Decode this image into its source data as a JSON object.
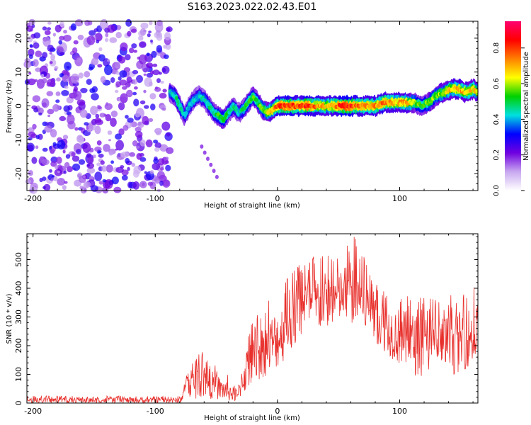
{
  "title": "S163.2023.022.02.43.E01",
  "chart_data": [
    {
      "type": "heatmap",
      "xlabel": "Height of straight line (km)",
      "ylabel": "Frequency (Hz)",
      "xlim": [
        -205,
        164
      ],
      "ylim": [
        -25,
        25
      ],
      "xticks": [
        -200,
        -100,
        0,
        100
      ],
      "yticks": [
        20,
        10,
        0,
        -10,
        -20
      ],
      "colorbar": {
        "label": "Normalized spectral amplitude",
        "range": [
          0.0,
          0.95
        ],
        "ticks": [
          0.0,
          0.2,
          0.4,
          0.6,
          0.8
        ],
        "colors": [
          "#ffffff",
          "#c8a8f0",
          "#7000e0",
          "#0000ff",
          "#00e0e0",
          "#00d000",
          "#ffff00",
          "#ff8000",
          "#ff0000",
          "#ff0070"
        ]
      },
      "noise_region": {
        "x_from": -205,
        "x_to": -88,
        "level": 0.25
      },
      "signal_track": [
        {
          "x": -88,
          "y": 4,
          "a": 0.45
        },
        {
          "x": -84,
          "y": 3,
          "a": 0.5
        },
        {
          "x": -80,
          "y": 0,
          "a": 0.5
        },
        {
          "x": -76,
          "y": -3,
          "a": 0.45
        },
        {
          "x": -72,
          "y": 0,
          "a": 0.45
        },
        {
          "x": -68,
          "y": 2,
          "a": 0.45
        },
        {
          "x": -64,
          "y": 3,
          "a": 0.45
        },
        {
          "x": -60,
          "y": 2,
          "a": 0.45
        },
        {
          "x": -56,
          "y": 0,
          "a": 0.5
        },
        {
          "x": -52,
          "y": -2,
          "a": 0.5
        },
        {
          "x": -48,
          "y": -3,
          "a": 0.55
        },
        {
          "x": -44,
          "y": -4,
          "a": 0.55
        },
        {
          "x": -40,
          "y": -2,
          "a": 0.5
        },
        {
          "x": -36,
          "y": 0,
          "a": 0.5
        },
        {
          "x": -32,
          "y": -2,
          "a": 0.45
        },
        {
          "x": -28,
          "y": -1,
          "a": 0.5
        },
        {
          "x": -24,
          "y": 1,
          "a": 0.55
        },
        {
          "x": -20,
          "y": 3,
          "a": 0.55
        },
        {
          "x": -16,
          "y": 1,
          "a": 0.55
        },
        {
          "x": -12,
          "y": -1,
          "a": 0.6
        },
        {
          "x": -8,
          "y": -2,
          "a": 0.65
        },
        {
          "x": -4,
          "y": -1,
          "a": 0.7
        },
        {
          "x": 0,
          "y": 0,
          "a": 0.8
        },
        {
          "x": 8,
          "y": 0,
          "a": 0.85
        },
        {
          "x": 16,
          "y": 0,
          "a": 0.8
        },
        {
          "x": 24,
          "y": 0,
          "a": 0.85
        },
        {
          "x": 32,
          "y": 0,
          "a": 0.75
        },
        {
          "x": 40,
          "y": 0,
          "a": 0.7
        },
        {
          "x": 48,
          "y": 0,
          "a": 0.8
        },
        {
          "x": 56,
          "y": 0,
          "a": 0.9
        },
        {
          "x": 64,
          "y": 0,
          "a": 0.8
        },
        {
          "x": 72,
          "y": 0,
          "a": 0.75
        },
        {
          "x": 80,
          "y": 0,
          "a": 0.75
        },
        {
          "x": 88,
          "y": 1,
          "a": 0.8
        },
        {
          "x": 96,
          "y": 1,
          "a": 0.7
        },
        {
          "x": 104,
          "y": 1,
          "a": 0.75
        },
        {
          "x": 112,
          "y": 1,
          "a": 0.6
        },
        {
          "x": 118,
          "y": 0,
          "a": 0.55
        },
        {
          "x": 124,
          "y": 1,
          "a": 0.6
        },
        {
          "x": 130,
          "y": 3,
          "a": 0.6
        },
        {
          "x": 136,
          "y": 4,
          "a": 0.65
        },
        {
          "x": 142,
          "y": 5,
          "a": 0.7
        },
        {
          "x": 148,
          "y": 5,
          "a": 0.75
        },
        {
          "x": 154,
          "y": 4,
          "a": 0.7
        },
        {
          "x": 160,
          "y": 5,
          "a": 0.7
        },
        {
          "x": 164,
          "y": 4,
          "a": 0.65
        }
      ]
    },
    {
      "type": "line",
      "xlabel": "Height of straight line (km)",
      "ylabel": "SNR (10 * v/v)",
      "xlim": [
        -205,
        164
      ],
      "ylim": [
        0,
        590
      ],
      "xticks": [
        -200,
        -100,
        0,
        100
      ],
      "yticks": [
        0,
        100,
        200,
        300,
        400,
        500
      ],
      "color": "#e8302c",
      "series": [
        {
          "envelope": [
            {
              "x": -205,
              "lo": 0,
              "hi": 25
            },
            {
              "x": -100,
              "lo": 0,
              "hi": 25
            },
            {
              "x": -80,
              "lo": 0,
              "hi": 25
            },
            {
              "x": -72,
              "lo": 10,
              "hi": 130
            },
            {
              "x": -62,
              "lo": 20,
              "hi": 190
            },
            {
              "x": -55,
              "lo": 15,
              "hi": 150
            },
            {
              "x": -45,
              "lo": 10,
              "hi": 110
            },
            {
              "x": -38,
              "lo": 5,
              "hi": 90
            },
            {
              "x": -33,
              "lo": 5,
              "hi": 40
            },
            {
              "x": -30,
              "lo": 20,
              "hi": 150
            },
            {
              "x": -25,
              "lo": 40,
              "hi": 250
            },
            {
              "x": -15,
              "lo": 80,
              "hi": 320
            },
            {
              "x": 0,
              "lo": 120,
              "hi": 400
            },
            {
              "x": 10,
              "lo": 170,
              "hi": 450
            },
            {
              "x": 20,
              "lo": 220,
              "hi": 500
            },
            {
              "x": 35,
              "lo": 250,
              "hi": 520
            },
            {
              "x": 50,
              "lo": 280,
              "hi": 520
            },
            {
              "x": 62,
              "lo": 270,
              "hi": 590
            },
            {
              "x": 75,
              "lo": 240,
              "hi": 470
            },
            {
              "x": 85,
              "lo": 190,
              "hi": 400
            },
            {
              "x": 100,
              "lo": 130,
              "hi": 400
            },
            {
              "x": 115,
              "lo": 90,
              "hi": 380
            },
            {
              "x": 130,
              "lo": 110,
              "hi": 370
            },
            {
              "x": 145,
              "lo": 100,
              "hi": 380
            },
            {
              "x": 164,
              "lo": 140,
              "hi": 420
            }
          ]
        }
      ]
    }
  ]
}
